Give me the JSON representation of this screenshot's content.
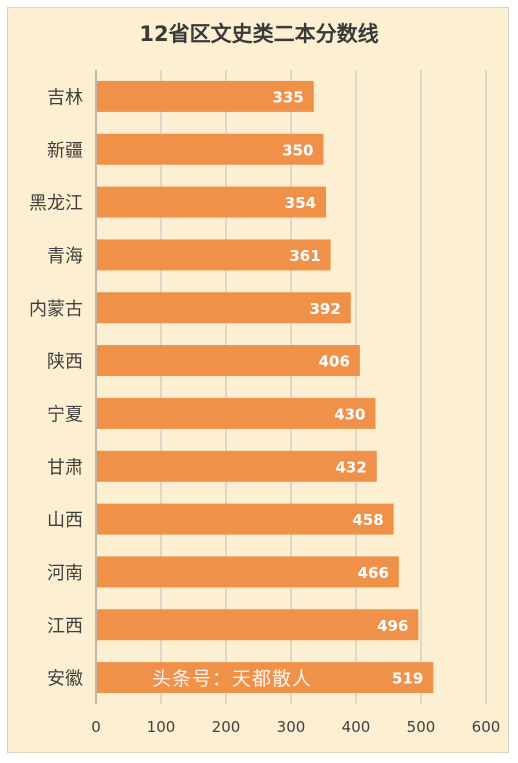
{
  "title": "12省区文史类二本分数线",
  "watermark": "头条号：天都散人",
  "colors": {
    "bar": "#f0914a",
    "background": "#fdf0d2",
    "grid": "#bfbfbf",
    "bar_label": "#ffffff",
    "axis_text": "#404040"
  },
  "chart_data": {
    "type": "bar",
    "orientation": "horizontal",
    "title": "12省区文史类二本分数线",
    "categories": [
      "吉林",
      "新疆",
      "黑龙江",
      "青海",
      "内蒙古",
      "陕西",
      "宁夏",
      "甘肃",
      "山西",
      "河南",
      "江西",
      "安徽"
    ],
    "values": [
      335,
      350,
      354,
      361,
      392,
      406,
      430,
      432,
      458,
      466,
      496,
      519
    ],
    "xlim": [
      0,
      600
    ],
    "xticks": [
      0,
      100,
      200,
      300,
      400,
      500,
      600
    ],
    "xlabel": "",
    "ylabel": "",
    "grid": "vertical",
    "data_labels": true,
    "legend": "none"
  }
}
